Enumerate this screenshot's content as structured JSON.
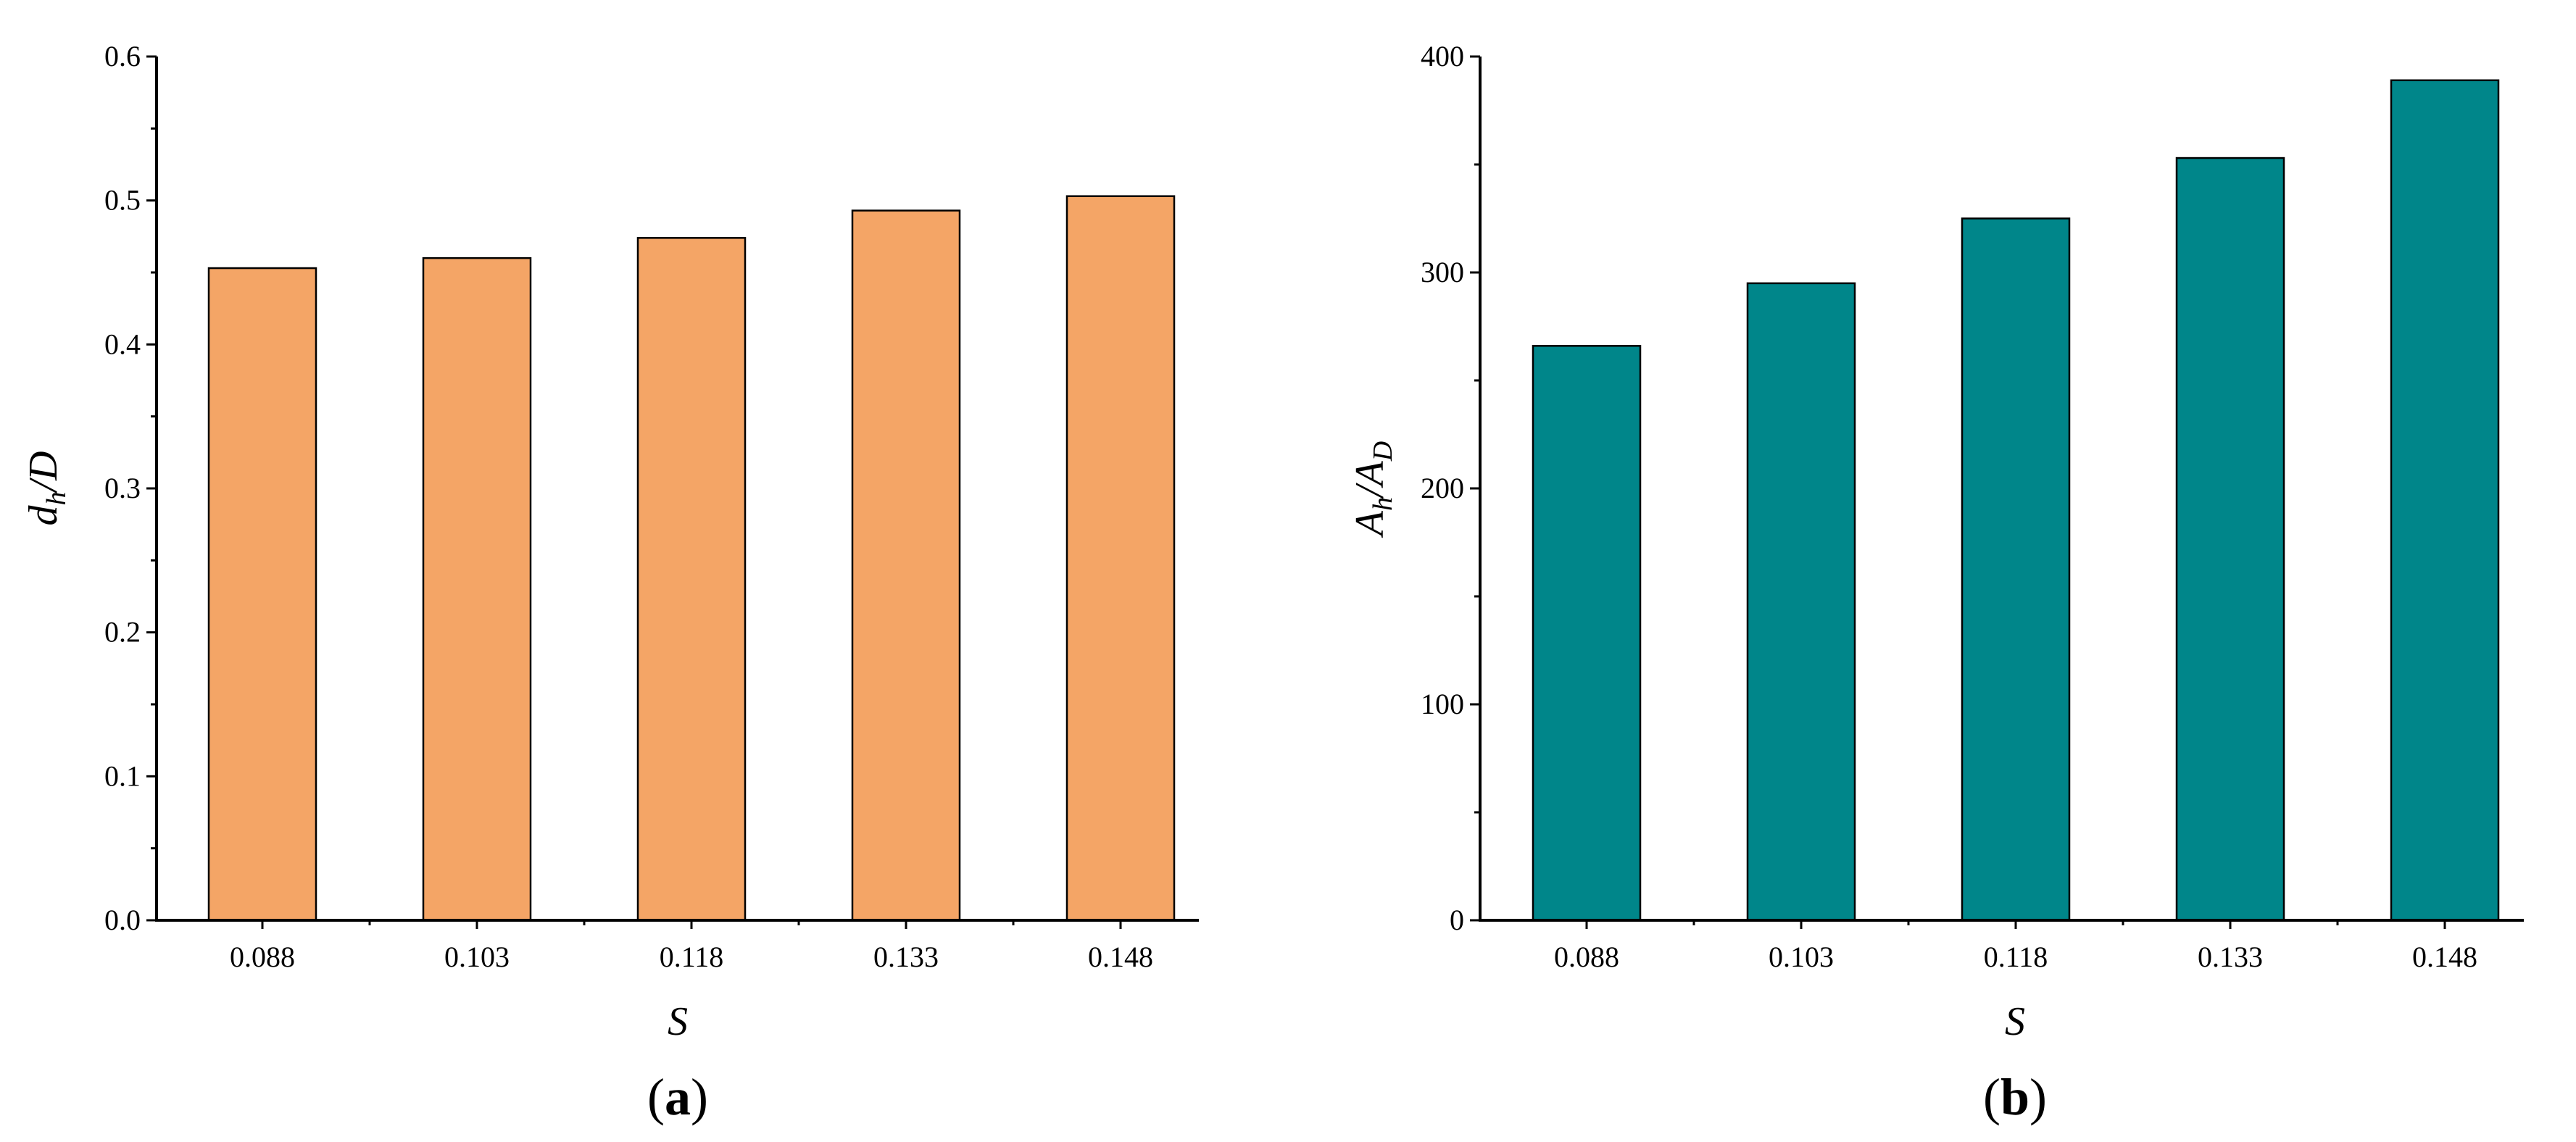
{
  "colors": {
    "panel_a_bar": "#F4A566",
    "panel_b_bar": "#00868A",
    "axis": "#000000"
  },
  "chart_data": [
    {
      "type": "bar",
      "panel_label": {
        "open": "(",
        "letter": "a",
        "close": ")"
      },
      "categories": [
        "0.088",
        "0.103",
        "0.118",
        "0.133",
        "0.148"
      ],
      "values": [
        0.453,
        0.46,
        0.474,
        0.493,
        0.503
      ],
      "xlabel": "S",
      "ylabel": {
        "main": "d",
        "sub": "h",
        "rest": "/D"
      },
      "ylim": [
        0,
        0.6
      ],
      "yticks": [
        "0.0",
        "0.1",
        "0.2",
        "0.3",
        "0.4",
        "0.5",
        "0.6"
      ],
      "grid": false,
      "legend": "none"
    },
    {
      "type": "bar",
      "panel_label": {
        "open": "(",
        "letter": "b",
        "close": ")"
      },
      "categories": [
        "0.088",
        "0.103",
        "0.118",
        "0.133",
        "0.148"
      ],
      "values": [
        266,
        295,
        325,
        353,
        389
      ],
      "xlabel": "S",
      "ylabel": {
        "main": "A",
        "sub": "h",
        "mid": "/A",
        "sub2": "D"
      },
      "ylim": [
        0,
        400
      ],
      "yticks": [
        "0",
        "100",
        "200",
        "300",
        "400"
      ],
      "grid": false,
      "legend": "none"
    }
  ]
}
